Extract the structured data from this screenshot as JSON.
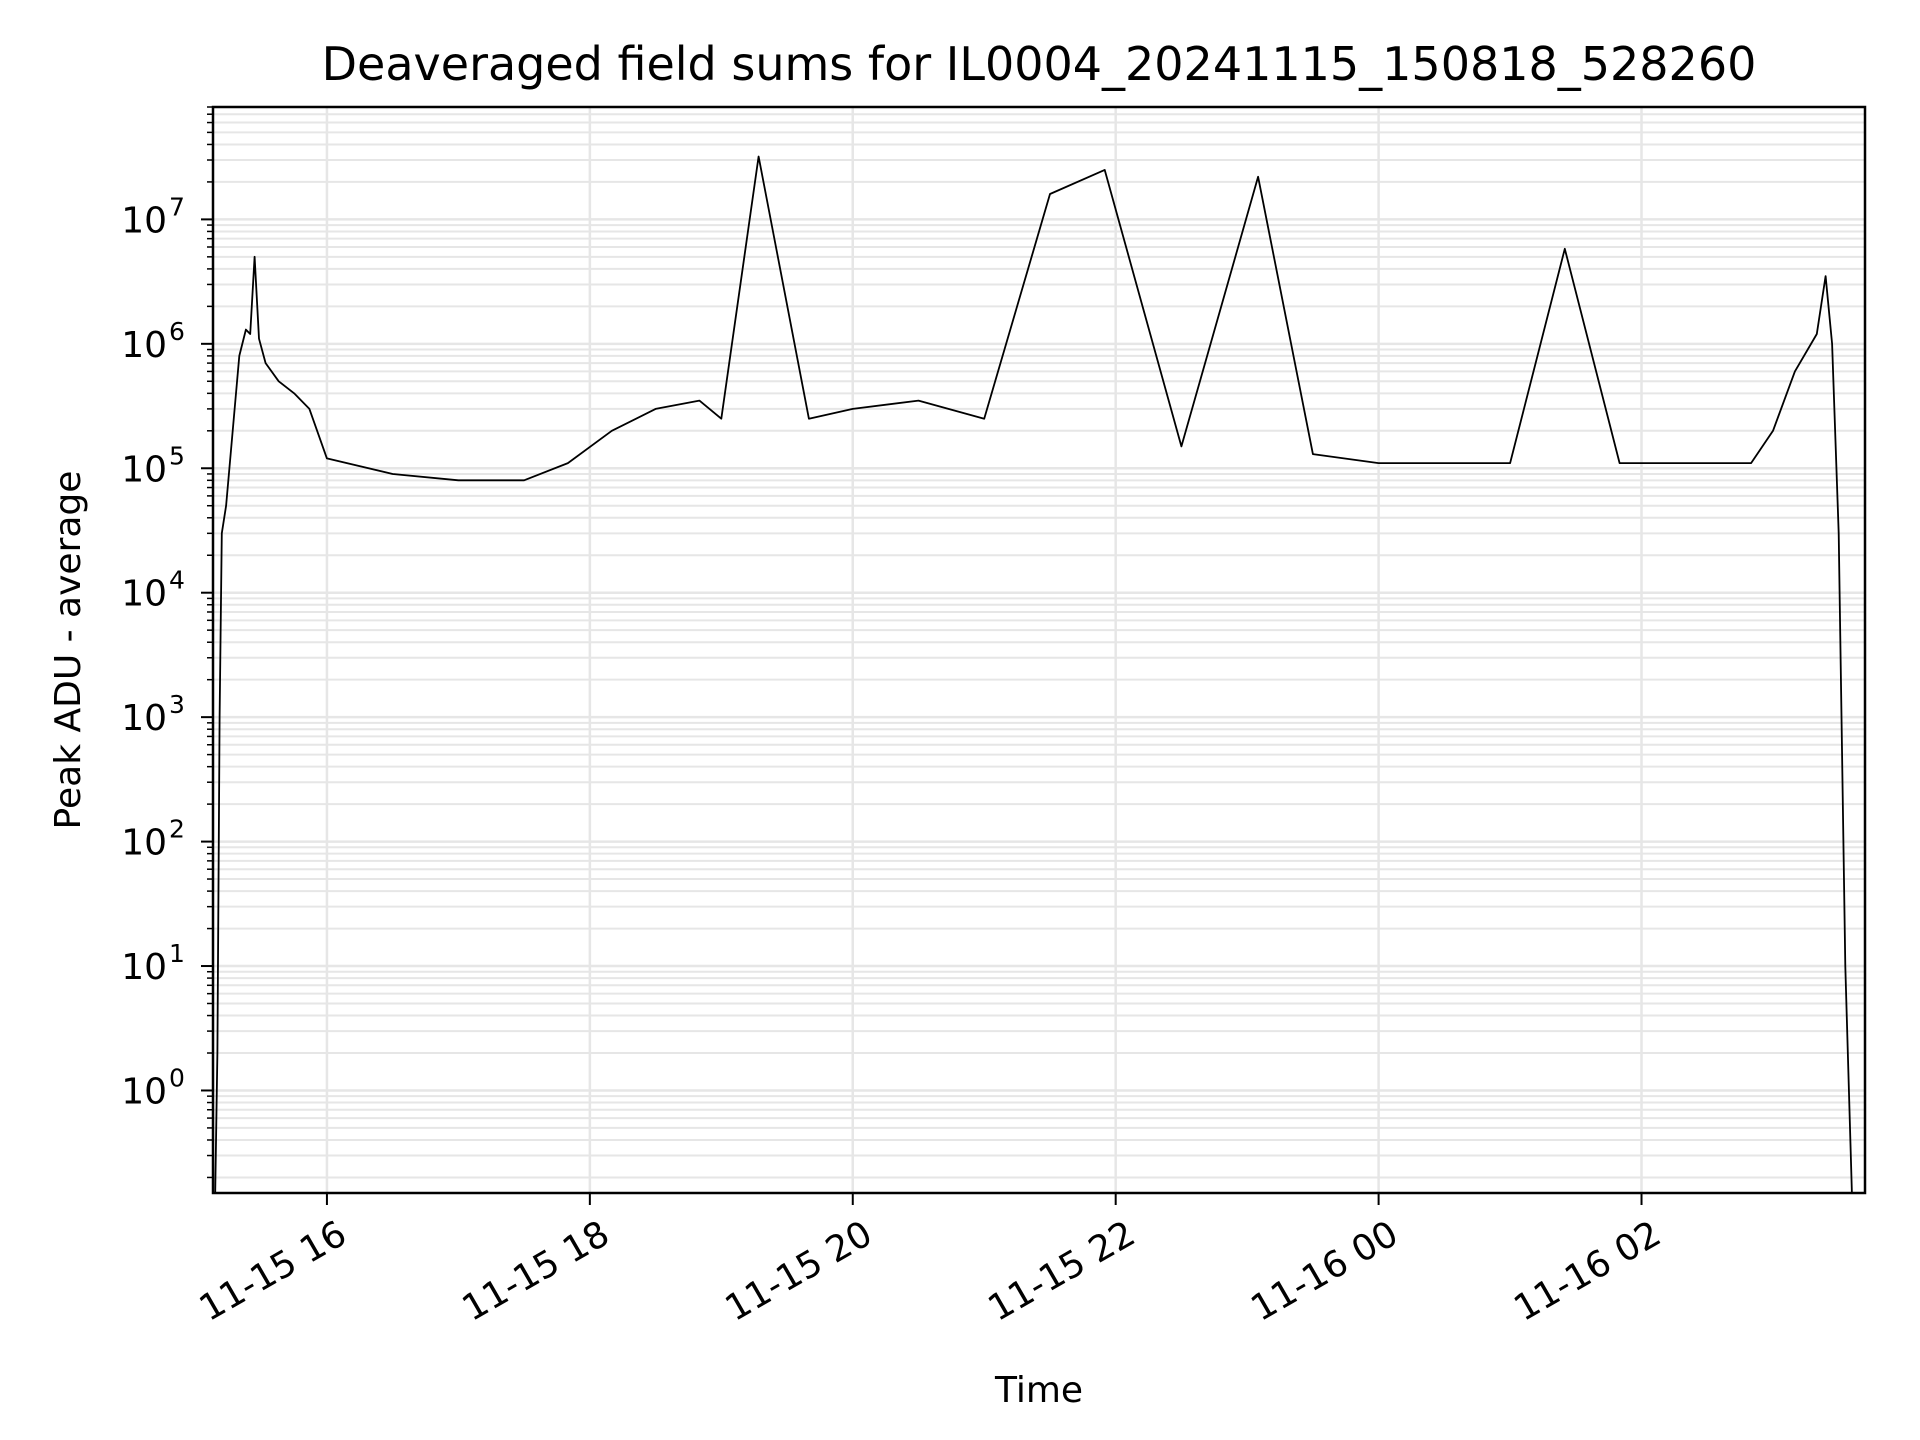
{
  "chart_data": {
    "type": "line",
    "title": "Deaveraged field sums for IL0004_20241115_150818_528260",
    "xlabel": "Time",
    "ylabel": "Peak ADU - average",
    "yscale": "log",
    "xlim": [
      "2024-11-15 15:08",
      "2024-11-16 03:42"
    ],
    "ylim": [
      0.15,
      80000000
    ],
    "grid": true,
    "grid_color": "#e6e6e6",
    "line_color": "#000000",
    "x_ticks": [
      {
        "value": "2024-11-15 16:00",
        "label": "11-15 16"
      },
      {
        "value": "2024-11-15 18:00",
        "label": "11-15 18"
      },
      {
        "value": "2024-11-15 20:00",
        "label": "11-15 20"
      },
      {
        "value": "2024-11-15 22:00",
        "label": "11-15 22"
      },
      {
        "value": "2024-11-16 00:00",
        "label": "11-16 00"
      },
      {
        "value": "2024-11-16 02:00",
        "label": "11-16 02"
      }
    ],
    "y_ticks": [
      {
        "value": 1,
        "base": "10",
        "exp": "0"
      },
      {
        "value": 10,
        "base": "10",
        "exp": "1"
      },
      {
        "value": 100,
        "base": "10",
        "exp": "2"
      },
      {
        "value": 1000,
        "base": "10",
        "exp": "3"
      },
      {
        "value": 10000,
        "base": "10",
        "exp": "4"
      },
      {
        "value": 100000,
        "base": "10",
        "exp": "5"
      },
      {
        "value": 1000000,
        "base": "10",
        "exp": "6"
      },
      {
        "value": 10000000,
        "base": "10",
        "exp": "7"
      }
    ],
    "series": [
      {
        "points": [
          [
            "2024-11-15 15:09",
            0.15
          ],
          [
            "2024-11-15 15:10",
            2
          ],
          [
            "2024-11-15 15:11",
            1000
          ],
          [
            "2024-11-15 15:12",
            30000
          ],
          [
            "2024-11-15 15:14",
            50000
          ],
          [
            "2024-11-15 15:17",
            200000
          ],
          [
            "2024-11-15 15:20",
            800000
          ],
          [
            "2024-11-15 15:23",
            1300000
          ],
          [
            "2024-11-15 15:25",
            1200000
          ],
          [
            "2024-11-15 15:27",
            5000000
          ],
          [
            "2024-11-15 15:29",
            1100000
          ],
          [
            "2024-11-15 15:32",
            700000
          ],
          [
            "2024-11-15 15:38",
            500000
          ],
          [
            "2024-11-15 15:45",
            400000
          ],
          [
            "2024-11-15 15:52",
            300000
          ],
          [
            "2024-11-15 16:00",
            120000
          ],
          [
            "2024-11-15 16:30",
            90000
          ],
          [
            "2024-11-15 17:00",
            80000
          ],
          [
            "2024-11-15 17:30",
            80000
          ],
          [
            "2024-11-15 17:50",
            110000
          ],
          [
            "2024-11-15 18:10",
            200000
          ],
          [
            "2024-11-15 18:30",
            300000
          ],
          [
            "2024-11-15 18:50",
            350000
          ],
          [
            "2024-11-15 19:00",
            250000
          ],
          [
            "2024-11-15 19:17",
            32000000
          ],
          [
            "2024-11-15 19:40",
            250000
          ],
          [
            "2024-11-15 20:00",
            300000
          ],
          [
            "2024-11-15 20:30",
            350000
          ],
          [
            "2024-11-15 21:00",
            250000
          ],
          [
            "2024-11-15 21:30",
            16000000
          ],
          [
            "2024-11-15 21:55",
            25000000
          ],
          [
            "2024-11-15 22:30",
            150000
          ],
          [
            "2024-11-15 23:05",
            22000000
          ],
          [
            "2024-11-15 23:30",
            130000
          ],
          [
            "2024-11-16 00:00",
            110000
          ],
          [
            "2024-11-16 00:30",
            110000
          ],
          [
            "2024-11-16 01:00",
            110000
          ],
          [
            "2024-11-16 01:25",
            5800000
          ],
          [
            "2024-11-16 01:50",
            110000
          ],
          [
            "2024-11-16 02:30",
            110000
          ],
          [
            "2024-11-16 02:50",
            110000
          ],
          [
            "2024-11-16 03:00",
            200000
          ],
          [
            "2024-11-16 03:10",
            600000
          ],
          [
            "2024-11-16 03:20",
            1200000
          ],
          [
            "2024-11-16 03:24",
            3500000
          ],
          [
            "2024-11-16 03:27",
            1000000
          ],
          [
            "2024-11-16 03:30",
            30000
          ],
          [
            "2024-11-16 03:33",
            10
          ],
          [
            "2024-11-16 03:36",
            0.15
          ]
        ]
      }
    ]
  }
}
